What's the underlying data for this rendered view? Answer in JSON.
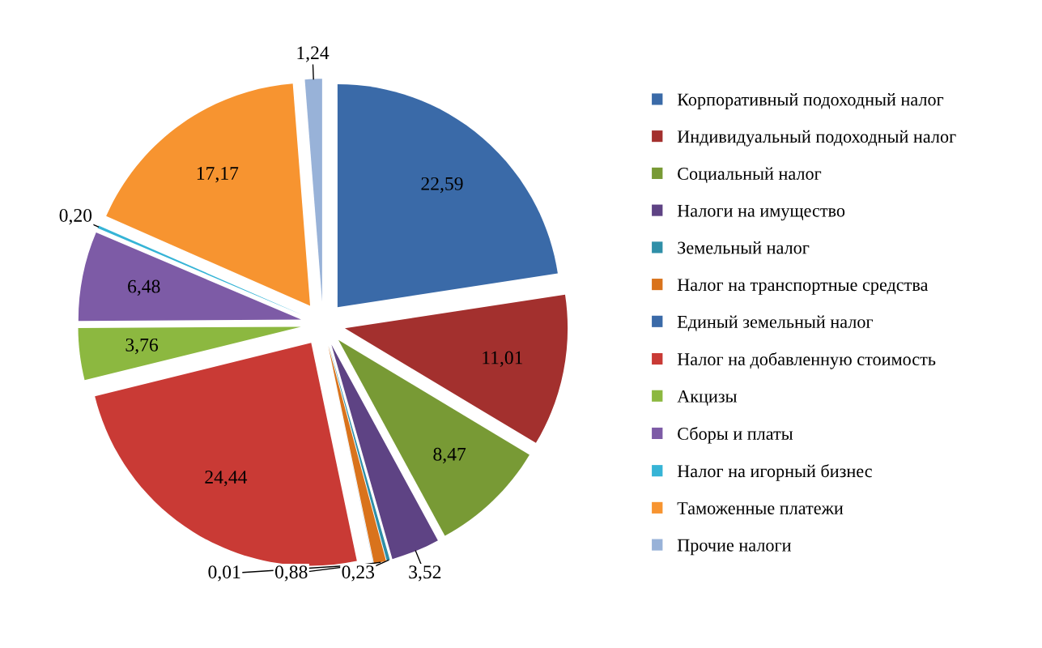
{
  "chart_data": {
    "type": "pie",
    "categories": [
      "Корпоративный подоходный налог",
      "Индивидуальный подоходный налог",
      "Социальный налог",
      "Налоги на имущество",
      "Земельный налог",
      "Налог на транспортные средства",
      "Единый земельный налог",
      "Налог на добавленную стоимость",
      "Акцизы",
      "Сборы и платы",
      "Налог на игорный бизнес",
      "Таможенные платежи",
      "Прочие налоги"
    ],
    "values": [
      22.59,
      11.01,
      8.47,
      3.52,
      0.23,
      0.88,
      0.01,
      24.44,
      3.76,
      6.48,
      0.2,
      17.17,
      1.24
    ],
    "value_labels": [
      "22,59",
      "11,01",
      "8,47",
      "3,52",
      "0,23",
      "0,88",
      "0,01",
      "24,44",
      "3,76",
      "6,48",
      "0,20",
      "17,17",
      "1,24"
    ],
    "colors": [
      "#3a6aa8",
      "#a3302e",
      "#789a35",
      "#5e4384",
      "#2f8fa8",
      "#d9731c",
      "#3a6aa8",
      "#c93a35",
      "#8cb840",
      "#7d5ba6",
      "#36b4d6",
      "#f79430",
      "#98b2d8"
    ],
    "legend": "right"
  }
}
